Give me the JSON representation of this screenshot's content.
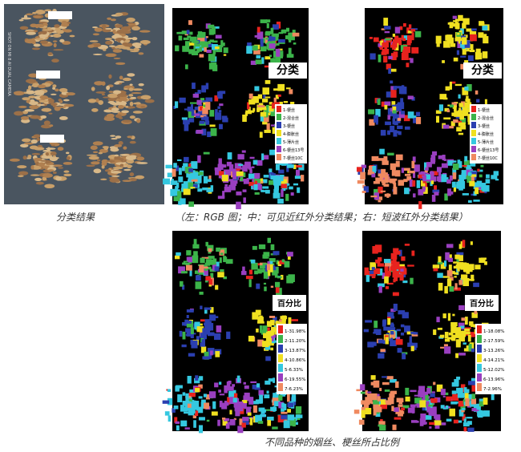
{
  "photo_watermark": "SHOT ON MI 8 AI DUAL CAMERA",
  "captions": {
    "left": "分类结果",
    "right": "（左：RGB 图；中：可见近红外分类结果；右：短波红外分类结果）",
    "bottom": "不同品种的烟丝、梗丝所占比例"
  },
  "legend_colors": [
    "#e8231e",
    "#3cb44a",
    "#2b3fb0",
    "#f0e020",
    "#35c8e0",
    "#9a3fc0",
    "#f08a60"
  ],
  "panels": [
    {
      "title": "分类",
      "legend": [
        "1-梗丝",
        "2-混合丝",
        "3-梗丝",
        "4-膨胀丝",
        "5-薄片丝",
        "6-梗丝13号",
        "7-梗丝10C"
      ]
    },
    {
      "title": "分类",
      "legend": [
        "1-梗丝",
        "2-混合丝",
        "3-梗丝",
        "4-膨胀丝",
        "5-薄片丝",
        "6-梗丝13号",
        "7-梗丝10C"
      ]
    },
    {
      "title": "百分比",
      "legend": [
        "1-31.98%",
        "2-11.20%",
        "3-13.87%",
        "4-10.86%",
        "5-6.33%",
        "6-19.55%",
        "7-6.23%"
      ]
    },
    {
      "title": "百分比",
      "legend": [
        "1-18.08%",
        "2-17.59%",
        "3-13.26%",
        "4-14.21%",
        "5-12.02%",
        "6-13.96%",
        "7-2.96%"
      ]
    }
  ]
}
